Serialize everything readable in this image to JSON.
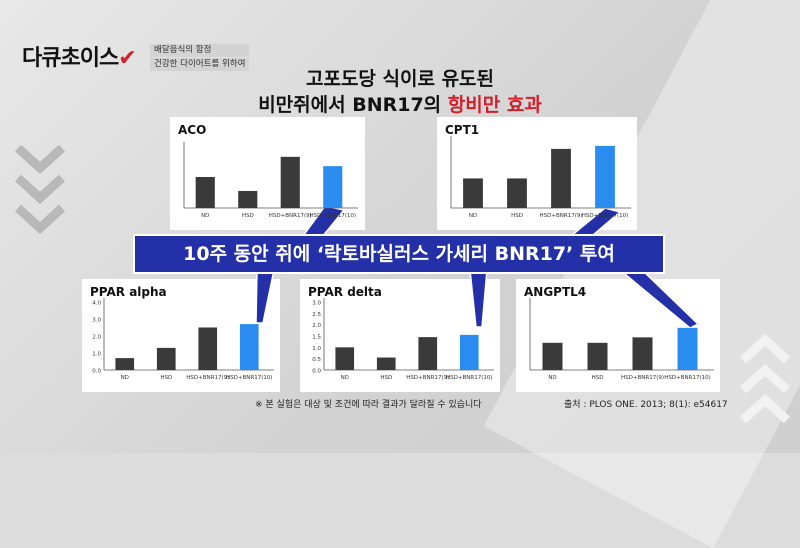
{
  "logo": {
    "name": "다큐초이스",
    "sub1": "배달음식의 함정",
    "sub2": "건강한 다이어트를 위하여"
  },
  "headline": {
    "line1": "고포도당 식이로 유도된",
    "line2_prefix": "비만쥐에서 BNR17의",
    "line2_highlight": "항비만 효과"
  },
  "banner": "10주 동안 쥐에 ‘락토바실러스 가세리 BNR17’ 투여",
  "note": "※ 본 실험은 대상 및 조건에 따라 결과가 달라질 수 있습니다",
  "source": "출처 : PLOS ONE. 2013; 8(1): e54617",
  "colors": {
    "bar_dark": "#3a3a3a",
    "bar_highlight": "#2b8cf0",
    "banner_bg": "#2430a8",
    "accent_red": "#d0202a"
  },
  "chart_data": [
    {
      "type": "bar",
      "title": "ACO",
      "categories": [
        "ND",
        "HSD",
        "HSD+BNR17(9)",
        "HSD+BNR17(10)"
      ],
      "values": [
        1.0,
        0.55,
        1.65,
        1.35
      ],
      "highlight_index": 3
    },
    {
      "type": "bar",
      "title": "CPT1",
      "categories": [
        "ND",
        "HSD",
        "HSD+BNR17(9)",
        "HSD+BNR17(10)"
      ],
      "values": [
        1.0,
        1.0,
        2.0,
        2.1
      ],
      "highlight_index": 3
    },
    {
      "type": "bar",
      "title": "PPAR alpha",
      "categories": [
        "ND",
        "HSD",
        "HSD+BNR17(9)",
        "HSD+BNR17(10)"
      ],
      "values": [
        0.7,
        1.3,
        2.5,
        2.7
      ],
      "highlight_index": 3,
      "yticks": [
        "0.0",
        "1.0",
        "2.0",
        "3.0",
        "4.0"
      ],
      "ylim": [
        0,
        4
      ]
    },
    {
      "type": "bar",
      "title": "PPAR delta",
      "categories": [
        "ND",
        "HSD",
        "HSD+BNR17(9)",
        "HSD+BNR17(10)"
      ],
      "values": [
        1.0,
        0.55,
        1.45,
        1.55
      ],
      "highlight_index": 3,
      "yticks": [
        "0.0",
        "0.5",
        "1.0",
        "1.5",
        "2.0",
        "2.5",
        "3.0"
      ],
      "ylim": [
        0,
        3
      ]
    },
    {
      "type": "bar",
      "title": "ANGPTL4",
      "categories": [
        "ND",
        "HSD",
        "HSD+BNR17(9)",
        "HSD+BNR17(10)"
      ],
      "values": [
        1.0,
        1.0,
        1.2,
        1.55
      ],
      "highlight_index": 3
    }
  ]
}
